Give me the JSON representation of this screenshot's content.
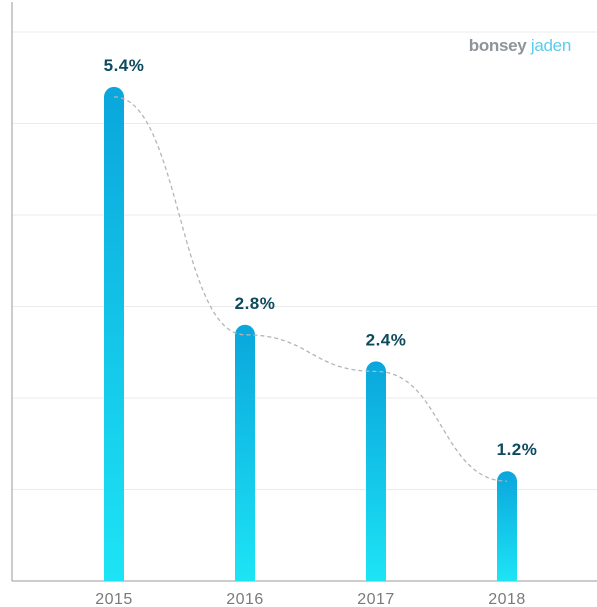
{
  "brand": {
    "logo_part1": "bonsey",
    "logo_part2": "jaden",
    "colors": {
      "part1": "#8f9499",
      "part2": "#5ccbec"
    }
  },
  "chart_data": {
    "type": "bar",
    "title": "",
    "xlabel": "",
    "ylabel": "",
    "categories": [
      "2015",
      "2016",
      "2017",
      "2018"
    ],
    "values": [
      5.4,
      2.8,
      2.4,
      1.2
    ],
    "value_labels": [
      "5.4%",
      "2.8%",
      "2.4%",
      "1.2%"
    ],
    "ylim": [
      0,
      6
    ],
    "grid": true,
    "trend_line": "dashed curve through bar tops",
    "legend": "none",
    "colors": {
      "bar_top": "#0aa6dc",
      "bar_bottom": "#1de4f5",
      "label": "#0d4a5e",
      "tick": "#7a7a7a",
      "grid": "#ebebeb",
      "axis": "#9a9a9a",
      "trend": "#b5b5b5"
    }
  }
}
